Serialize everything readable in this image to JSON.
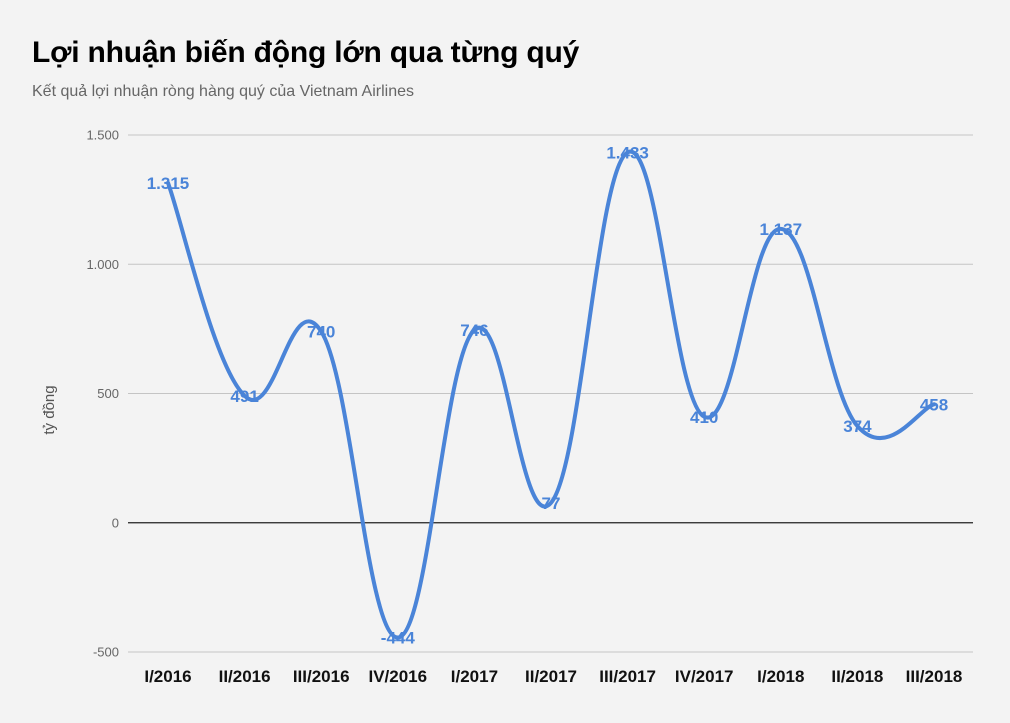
{
  "header": {
    "title": "Lợi nhuận biến động lớn qua từng quý",
    "subtitle": "Kết quả lợi nhuận ròng hàng quý của Vietnam Airlines"
  },
  "colors": {
    "background": "#f3f3f3",
    "line": "#4a84d8",
    "gridline": "#c4c4c4",
    "zero_line": "#222222"
  },
  "chart_data": {
    "type": "line",
    "title": "Lợi nhuận biến động lớn qua từng quý",
    "subtitle": "Kết quả lợi nhuận ròng hàng quý của Vietnam Airlines",
    "xlabel": "",
    "ylabel": "tỷ đồng",
    "categories": [
      "I/2016",
      "II/2016",
      "III/2016",
      "IV/2016",
      "I/2017",
      "II/2017",
      "III/2017",
      "IV/2017",
      "I/2018",
      "II/2018",
      "III/2018"
    ],
    "series": [
      {
        "name": "Lợi nhuận ròng",
        "values": [
          1315,
          491,
          740,
          -444,
          746,
          77,
          1433,
          410,
          1137,
          374,
          458
        ],
        "labels": [
          "1.315",
          "491",
          "740",
          "-444",
          "746",
          "77",
          "1.433",
          "410",
          "1.137",
          "374",
          "458"
        ]
      }
    ],
    "ylim": [
      -500,
      1500
    ],
    "yticks": [
      1500,
      1000,
      500,
      0,
      -500
    ],
    "ytick_labels": [
      "1.500",
      "1.000",
      "500",
      "0",
      "-500"
    ],
    "grid": true,
    "smooth": true,
    "legend": "none"
  }
}
